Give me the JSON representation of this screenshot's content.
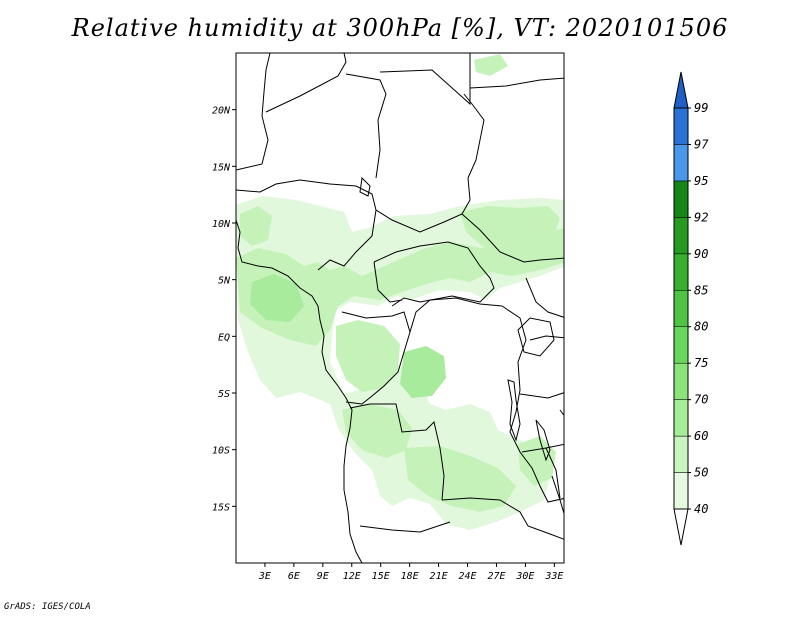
{
  "title": "Relative humidity at 300hPa [%], VT: 2020101506",
  "credit": "GrADS: IGES/COLA",
  "map": {
    "lon_range": [
      0,
      34
    ],
    "lat_range": [
      -20,
      25
    ],
    "lat_ticks": [
      {
        "value": 20,
        "label": "20N"
      },
      {
        "value": 15,
        "label": "15N"
      },
      {
        "value": 10,
        "label": "10N"
      },
      {
        "value": 5,
        "label": "5N"
      },
      {
        "value": 0,
        "label": "EQ"
      },
      {
        "value": -5,
        "label": "5S"
      },
      {
        "value": -10,
        "label": "10S"
      },
      {
        "value": -15,
        "label": "15S"
      }
    ],
    "lon_ticks": [
      {
        "value": 3,
        "label": "3E"
      },
      {
        "value": 6,
        "label": "6E"
      },
      {
        "value": 9,
        "label": "9E"
      },
      {
        "value": 12,
        "label": "12E"
      },
      {
        "value": 15,
        "label": "15E"
      },
      {
        "value": 18,
        "label": "18E"
      },
      {
        "value": 21,
        "label": "21E"
      },
      {
        "value": 24,
        "label": "24E"
      },
      {
        "value": 27,
        "label": "27E"
      },
      {
        "value": 30,
        "label": "30E"
      },
      {
        "value": 33,
        "label": "33E"
      }
    ]
  },
  "colorbar": {
    "levels": [
      {
        "label": "40",
        "color": "#ffffff"
      },
      {
        "label": "50",
        "color": "#e6fae1"
      },
      {
        "label": "60",
        "color": "#c8f5bf"
      },
      {
        "label": "70",
        "color": "#a4ee97"
      },
      {
        "label": "75",
        "color": "#8ae47a"
      },
      {
        "label": "80",
        "color": "#69d65c"
      },
      {
        "label": "85",
        "color": "#4fc443"
      },
      {
        "label": "90",
        "color": "#36b02e"
      },
      {
        "label": "92",
        "color": "#279a22"
      },
      {
        "label": "95",
        "color": "#158716"
      },
      {
        "label": "97",
        "color": "#4a98ea"
      },
      {
        "label": "99",
        "color": "#2a72d6"
      }
    ],
    "top_color": "#1f5fc6"
  }
}
